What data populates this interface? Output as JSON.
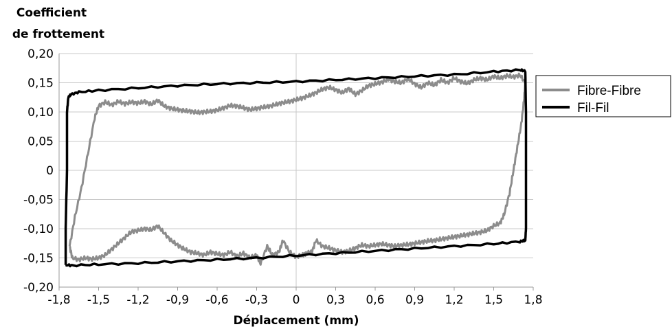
{
  "chart_data": {
    "type": "line",
    "title": "",
    "ylabel_lines": [
      "Coefficient",
      "de frottement"
    ],
    "xlabel": "Déplacement (mm)",
    "xlim": [
      -1.8,
      1.8
    ],
    "ylim": [
      -0.2,
      0.2
    ],
    "x_ticks": [
      -1.8,
      -1.5,
      -1.2,
      -0.9,
      -0.6,
      -0.3,
      0,
      0.3,
      0.6,
      0.9,
      1.2,
      1.5,
      1.8
    ],
    "x_tick_labels": [
      "-1,8",
      "-1,5",
      "-1,2",
      "-0,9",
      "-0,6",
      "-0,3",
      "0",
      "0,3",
      "0,6",
      "0,9",
      "1,2",
      "1,5",
      "1,8"
    ],
    "y_ticks": [
      -0.2,
      -0.15,
      -0.1,
      -0.05,
      0,
      0.05,
      0.1,
      0.15,
      0.2
    ],
    "y_tick_labels": [
      "-0,20",
      "-0,15",
      "-0,10",
      "-0,05",
      "0",
      "0,05",
      "0,10",
      "0,15",
      "0,20"
    ],
    "grid": "horizontal",
    "legend_position": "right",
    "series": [
      {
        "name": "Fibre-Fibre",
        "color": "#8c8c8c",
        "points": [
          [
            -1.72,
            -0.13
          ],
          [
            -1.68,
            -0.08
          ],
          [
            -1.63,
            -0.03
          ],
          [
            -1.58,
            0.03
          ],
          [
            -1.53,
            0.09
          ],
          [
            -1.5,
            0.11
          ],
          [
            -1.45,
            0.117
          ],
          [
            -1.4,
            0.112
          ],
          [
            -1.35,
            0.118
          ],
          [
            -1.3,
            0.114
          ],
          [
            -1.25,
            0.117
          ],
          [
            -1.2,
            0.115
          ],
          [
            -1.15,
            0.118
          ],
          [
            -1.1,
            0.113
          ],
          [
            -1.05,
            0.12
          ],
          [
            -1.0,
            0.11
          ],
          [
            -0.95,
            0.106
          ],
          [
            -0.9,
            0.104
          ],
          [
            -0.85,
            0.102
          ],
          [
            -0.8,
            0.101
          ],
          [
            -0.75,
            0.099
          ],
          [
            -0.7,
            0.1
          ],
          [
            -0.65,
            0.101
          ],
          [
            -0.6,
            0.103
          ],
          [
            -0.55,
            0.107
          ],
          [
            -0.5,
            0.111
          ],
          [
            -0.45,
            0.11
          ],
          [
            -0.4,
            0.107
          ],
          [
            -0.35,
            0.104
          ],
          [
            -0.3,
            0.106
          ],
          [
            -0.25,
            0.108
          ],
          [
            -0.2,
            0.11
          ],
          [
            -0.15,
            0.113
          ],
          [
            -0.1,
            0.116
          ],
          [
            -0.05,
            0.118
          ],
          [
            0.0,
            0.121
          ],
          [
            0.05,
            0.124
          ],
          [
            0.1,
            0.128
          ],
          [
            0.15,
            0.133
          ],
          [
            0.2,
            0.139
          ],
          [
            0.25,
            0.142
          ],
          [
            0.3,
            0.138
          ],
          [
            0.35,
            0.133
          ],
          [
            0.4,
            0.14
          ],
          [
            0.45,
            0.13
          ],
          [
            0.5,
            0.137
          ],
          [
            0.55,
            0.145
          ],
          [
            0.6,
            0.148
          ],
          [
            0.65,
            0.151
          ],
          [
            0.7,
            0.156
          ],
          [
            0.75,
            0.152
          ],
          [
            0.8,
            0.15
          ],
          [
            0.85,
            0.157
          ],
          [
            0.9,
            0.148
          ],
          [
            0.95,
            0.142
          ],
          [
            1.0,
            0.15
          ],
          [
            1.05,
            0.146
          ],
          [
            1.1,
            0.155
          ],
          [
            1.15,
            0.15
          ],
          [
            1.2,
            0.158
          ],
          [
            1.25,
            0.152
          ],
          [
            1.3,
            0.149
          ],
          [
            1.35,
            0.155
          ],
          [
            1.4,
            0.158
          ],
          [
            1.45,
            0.155
          ],
          [
            1.5,
            0.161
          ],
          [
            1.55,
            0.158
          ],
          [
            1.6,
            0.162
          ],
          [
            1.65,
            0.16
          ],
          [
            1.7,
            0.163
          ],
          [
            1.74,
            0.15
          ],
          [
            1.73,
            0.12
          ],
          [
            1.71,
            0.08
          ],
          [
            1.68,
            0.04
          ],
          [
            1.65,
            0.0
          ],
          [
            1.62,
            -0.04
          ],
          [
            1.58,
            -0.075
          ],
          [
            1.55,
            -0.09
          ],
          [
            1.5,
            -0.095
          ],
          [
            1.45,
            -0.103
          ],
          [
            1.4,
            -0.106
          ],
          [
            1.35,
            -0.108
          ],
          [
            1.3,
            -0.11
          ],
          [
            1.25,
            -0.112
          ],
          [
            1.2,
            -0.114
          ],
          [
            1.15,
            -0.116
          ],
          [
            1.1,
            -0.118
          ],
          [
            1.05,
            -0.12
          ],
          [
            1.0,
            -0.121
          ],
          [
            0.95,
            -0.123
          ],
          [
            0.9,
            -0.125
          ],
          [
            0.85,
            -0.127
          ],
          [
            0.8,
            -0.128
          ],
          [
            0.75,
            -0.13
          ],
          [
            0.7,
            -0.128
          ],
          [
            0.65,
            -0.126
          ],
          [
            0.6,
            -0.128
          ],
          [
            0.55,
            -0.13
          ],
          [
            0.5,
            -0.128
          ],
          [
            0.45,
            -0.133
          ],
          [
            0.4,
            -0.138
          ],
          [
            0.35,
            -0.14
          ],
          [
            0.3,
            -0.137
          ],
          [
            0.25,
            -0.133
          ],
          [
            0.2,
            -0.13
          ],
          [
            0.15,
            -0.12
          ],
          [
            0.12,
            -0.14
          ],
          [
            0.08,
            -0.142
          ],
          [
            0.05,
            -0.145
          ],
          [
            0.0,
            -0.148
          ],
          [
            -0.05,
            -0.14
          ],
          [
            -0.1,
            -0.12
          ],
          [
            -0.13,
            -0.14
          ],
          [
            -0.18,
            -0.145
          ],
          [
            -0.22,
            -0.13
          ],
          [
            -0.27,
            -0.16
          ],
          [
            -0.3,
            -0.145
          ],
          [
            -0.35,
            -0.15
          ],
          [
            -0.4,
            -0.142
          ],
          [
            -0.45,
            -0.147
          ],
          [
            -0.5,
            -0.14
          ],
          [
            -0.55,
            -0.145
          ],
          [
            -0.6,
            -0.143
          ],
          [
            -0.65,
            -0.14
          ],
          [
            -0.7,
            -0.145
          ],
          [
            -0.75,
            -0.142
          ],
          [
            -0.8,
            -0.14
          ],
          [
            -0.85,
            -0.135
          ],
          [
            -0.9,
            -0.128
          ],
          [
            -0.95,
            -0.12
          ],
          [
            -1.0,
            -0.108
          ],
          [
            -1.05,
            -0.095
          ],
          [
            -1.1,
            -0.102
          ],
          [
            -1.15,
            -0.1
          ],
          [
            -1.2,
            -0.103
          ],
          [
            -1.25,
            -0.105
          ],
          [
            -1.3,
            -0.115
          ],
          [
            -1.35,
            -0.125
          ],
          [
            -1.4,
            -0.135
          ],
          [
            -1.45,
            -0.145
          ],
          [
            -1.5,
            -0.15
          ],
          [
            -1.55,
            -0.152
          ],
          [
            -1.6,
            -0.15
          ],
          [
            -1.65,
            -0.153
          ],
          [
            -1.7,
            -0.15
          ],
          [
            -1.72,
            -0.13
          ]
        ]
      },
      {
        "name": "Fil-Fil",
        "color": "#000000",
        "points": [
          [
            -1.75,
            -0.162
          ],
          [
            -1.75,
            -0.1
          ],
          [
            -1.74,
            0.0
          ],
          [
            -1.74,
            0.1
          ],
          [
            -1.73,
            0.125
          ],
          [
            -1.71,
            0.13
          ],
          [
            -1.65,
            0.134
          ],
          [
            -1.5,
            0.137
          ],
          [
            -1.2,
            0.141
          ],
          [
            -0.9,
            0.145
          ],
          [
            -0.6,
            0.148
          ],
          [
            -0.3,
            0.15
          ],
          [
            0.0,
            0.152
          ],
          [
            0.3,
            0.155
          ],
          [
            0.6,
            0.158
          ],
          [
            0.9,
            0.161
          ],
          [
            1.2,
            0.164
          ],
          [
            1.5,
            0.169
          ],
          [
            1.7,
            0.172
          ],
          [
            1.74,
            0.17
          ],
          [
            1.745,
            0.1
          ],
          [
            1.745,
            0.0
          ],
          [
            1.745,
            -0.1
          ],
          [
            1.74,
            -0.12
          ],
          [
            1.7,
            -0.122
          ],
          [
            1.5,
            -0.126
          ],
          [
            1.2,
            -0.13
          ],
          [
            0.9,
            -0.134
          ],
          [
            0.6,
            -0.138
          ],
          [
            0.3,
            -0.142
          ],
          [
            0.0,
            -0.146
          ],
          [
            -0.3,
            -0.15
          ],
          [
            -0.6,
            -0.153
          ],
          [
            -0.9,
            -0.156
          ],
          [
            -1.2,
            -0.159
          ],
          [
            -1.5,
            -0.161
          ],
          [
            -1.7,
            -0.163
          ],
          [
            -1.75,
            -0.162
          ]
        ]
      }
    ]
  }
}
